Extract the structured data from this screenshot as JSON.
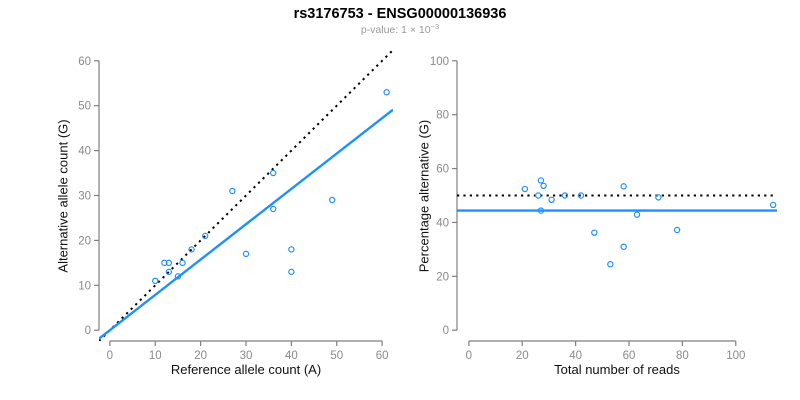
{
  "header": {
    "title": "rs3176753 - ENSG00000136936",
    "subtitle_prefix": "p-value: 1 × 10",
    "subtitle_exponent": "−3"
  },
  "colors": {
    "point_blue": "#1E90FF",
    "line_blue": "#1E90FF",
    "dotted_black": "#000000",
    "axis_gray": "#7f7f7f",
    "tick_label_gray": "#8a8a8a",
    "subtitle_gray": "#999999",
    "title_black": "#000000"
  },
  "chart_data": [
    {
      "type": "scatter",
      "name": "allele-counts-scatter",
      "xlabel": "Reference allele count (A)",
      "ylabel": "Alternative allele count (G)",
      "xlim": [
        0,
        60
      ],
      "ylim": [
        0,
        60
      ],
      "xticks": [
        0,
        10,
        20,
        30,
        40,
        50,
        60
      ],
      "yticks": [
        0,
        10,
        20,
        30,
        40,
        50,
        60
      ],
      "grid": false,
      "legend": null,
      "points": [
        [
          10,
          11
        ],
        [
          12,
          15
        ],
        [
          13,
          13
        ],
        [
          13,
          15
        ],
        [
          15,
          12
        ],
        [
          16,
          15
        ],
        [
          18,
          18
        ],
        [
          21,
          21
        ],
        [
          27,
          31
        ],
        [
          30,
          17
        ],
        [
          36,
          27
        ],
        [
          36,
          35
        ],
        [
          40,
          13
        ],
        [
          40,
          18
        ],
        [
          49,
          29
        ],
        [
          61,
          53
        ]
      ],
      "lines": [
        {
          "name": "identity-line",
          "style": "dotted",
          "color": "#000000",
          "slope": 1,
          "intercept": 0
        },
        {
          "name": "fit-line",
          "style": "solid",
          "color": "#1E90FF",
          "slope": 0.787,
          "intercept": 0
        }
      ]
    },
    {
      "type": "scatter",
      "name": "percentage-vs-reads-scatter",
      "xlabel": "Total number of reads",
      "ylabel": "Percentage alternative (G)",
      "xlim": [
        0,
        111
      ],
      "ylim": [
        0,
        100
      ],
      "xticks": [
        0,
        20,
        40,
        60,
        80,
        100
      ],
      "yticks": [
        0,
        20,
        40,
        60,
        80,
        100
      ],
      "grid": false,
      "legend": null,
      "points": [
        [
          21,
          52.4
        ],
        [
          26,
          50
        ],
        [
          27,
          55.6
        ],
        [
          27,
          44.4
        ],
        [
          28,
          53.6
        ],
        [
          31,
          48.4
        ],
        [
          36,
          50
        ],
        [
          42,
          50
        ],
        [
          47,
          36.2
        ],
        [
          53,
          24.5
        ],
        [
          58,
          31
        ],
        [
          58,
          53.4
        ],
        [
          63,
          42.9
        ],
        [
          71,
          49.3
        ],
        [
          78,
          37.2
        ],
        [
          114,
          46.5
        ]
      ],
      "lines": [
        {
          "name": "reference-line-50pct",
          "style": "dotted",
          "color": "#000000",
          "slope": 0,
          "intercept": 50
        },
        {
          "name": "fit-line",
          "style": "solid",
          "color": "#1E90FF",
          "slope": 0,
          "intercept": 44.4
        }
      ]
    }
  ]
}
